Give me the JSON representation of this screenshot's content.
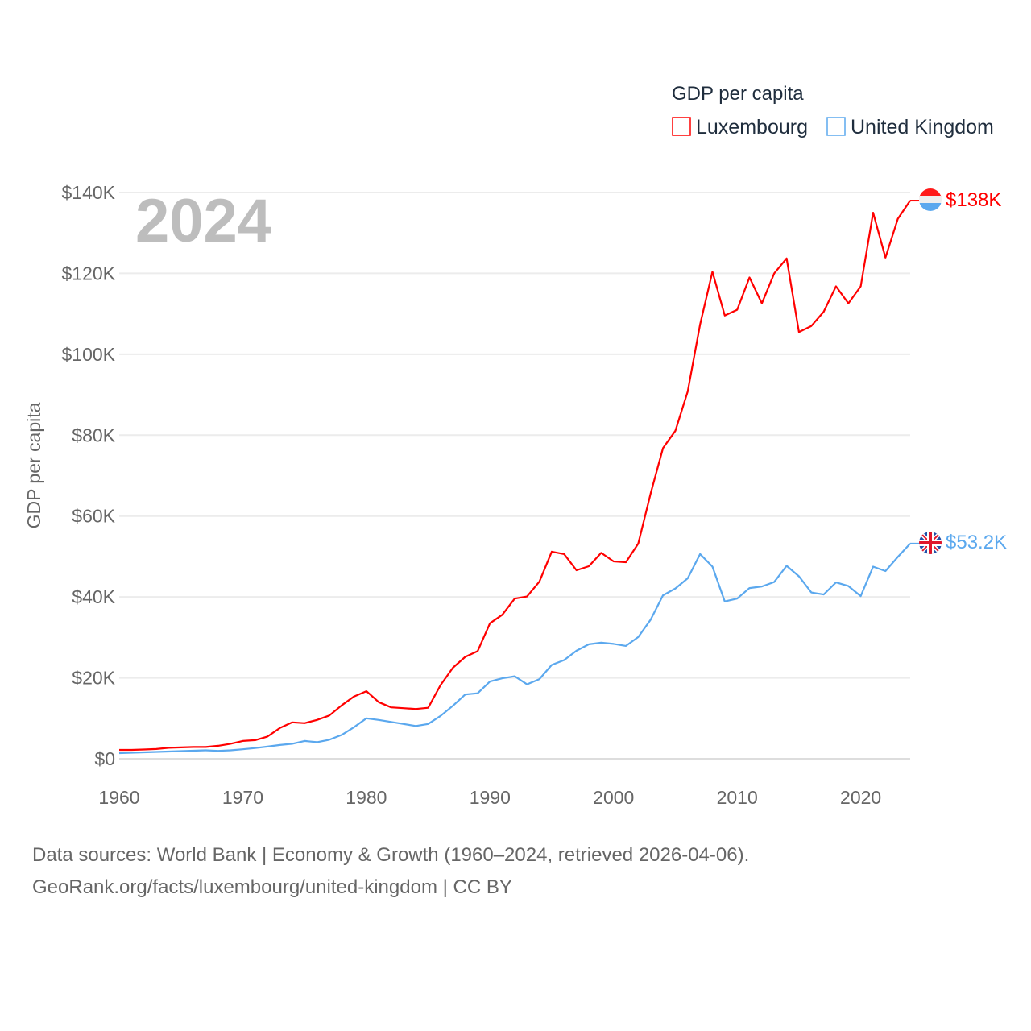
{
  "chart_data": {
    "type": "line",
    "title": "GDP per capita",
    "ylabel": "GDP per capita",
    "xlabel": "",
    "year_display": "2024",
    "xlim": [
      1960,
      2024
    ],
    "ylim": [
      0,
      140000
    ],
    "x_ticks": [
      "1960",
      "1970",
      "1980",
      "1990",
      "2000",
      "2010",
      "2020"
    ],
    "x_tick_values": [
      1960,
      1970,
      1980,
      1990,
      2000,
      2010,
      2020
    ],
    "y_ticks": [
      "$0",
      "$20K",
      "$40K",
      "$60K",
      "$80K",
      "$100K",
      "$120K",
      "$140K"
    ],
    "y_tick_values": [
      0,
      20000,
      40000,
      60000,
      80000,
      100000,
      120000,
      140000
    ],
    "grid": true,
    "legend_placement": "top-right",
    "x_start": 1960,
    "series": [
      {
        "name": "Luxembourg",
        "color": "#ff0000",
        "end_label": "$138K",
        "flag": "luxembourg-flag",
        "values": [
          2.2,
          2.2,
          2.3,
          2.4,
          2.7,
          2.8,
          2.9,
          2.9,
          3.2,
          3.7,
          4.4,
          4.6,
          5.5,
          7.6,
          9.0,
          8.8,
          9.6,
          10.7,
          13.2,
          15.4,
          16.7,
          14.0,
          12.7,
          12.5,
          12.3,
          12.6,
          18.2,
          22.5,
          25.2,
          26.6,
          33.5,
          35.6,
          39.6,
          40.1,
          43.8,
          51.2,
          50.6,
          46.6,
          47.6,
          50.9,
          48.8,
          48.6,
          53.2,
          65.6,
          76.8,
          81.1,
          90.8,
          107.4,
          120.4,
          109.6,
          111.0,
          119.0,
          112.6,
          120.0,
          123.7,
          105.5,
          107.0,
          110.5,
          116.8,
          112.6,
          116.8,
          135.0,
          123.9,
          133.5,
          138.0
        ]
      },
      {
        "name": "United Kingdom",
        "color": "#5ba8ee",
        "end_label": "$53.2K",
        "flag": "uk-flag",
        "values": [
          1.4,
          1.5,
          1.6,
          1.7,
          1.8,
          1.9,
          2.0,
          2.1,
          1.95,
          2.1,
          2.35,
          2.65,
          3.0,
          3.4,
          3.7,
          4.4,
          4.1,
          4.7,
          5.9,
          7.8,
          10.0,
          9.6,
          9.1,
          8.6,
          8.1,
          8.6,
          10.6,
          13.1,
          15.9,
          16.2,
          19.1,
          19.9,
          20.4,
          18.4,
          19.7,
          23.2,
          24.4,
          26.7,
          28.3,
          28.7,
          28.4,
          27.9,
          30.1,
          34.4,
          40.4,
          42.1,
          44.6,
          50.6,
          47.5,
          38.9,
          39.6,
          42.2,
          42.6,
          43.7,
          47.7,
          45.1,
          41.1,
          40.6,
          43.6,
          42.7,
          40.2,
          47.5,
          46.4,
          49.9,
          53.2
        ]
      }
    ],
    "values_unit": "thousand USD"
  },
  "footer": {
    "line1": "Data sources: World Bank | Economy & Growth (1960–2024, retrieved 2026-04-06).",
    "line2": "GeoRank.org/facts/luxembourg/united-kingdom | CC BY"
  }
}
